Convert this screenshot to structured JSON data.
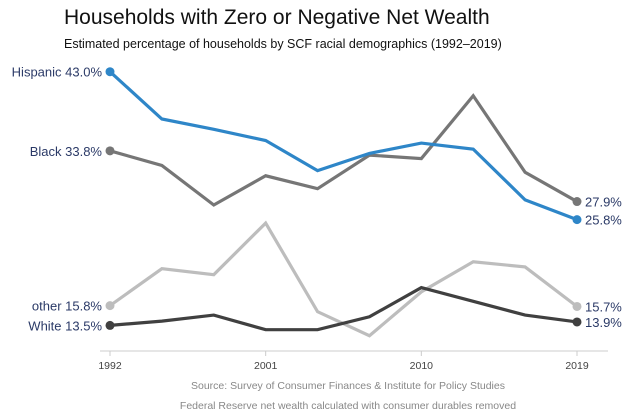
{
  "chart_data": {
    "type": "line",
    "title": "Households with Zero or Negative Net Wealth",
    "subtitle": "Estimated percentage of households by SCF racial demographics (1992–2019)",
    "x": [
      1992,
      1995,
      1998,
      2001,
      2004,
      2007,
      2010,
      2013,
      2016,
      2019
    ],
    "xticks": [
      "1992",
      "2001",
      "2010",
      "2019"
    ],
    "grid": false,
    "series": [
      {
        "name": "Hispanic",
        "color": "#2e86c8",
        "start_label": "Hispanic 43.0%",
        "end_label": "25.8%",
        "values": [
          43.0,
          37.5,
          36.3,
          35.0,
          31.5,
          33.5,
          34.7,
          34.0,
          28.1,
          25.8
        ]
      },
      {
        "name": "Black",
        "color": "#767676",
        "start_label": "Black 33.8%",
        "end_label": "27.9%",
        "values": [
          33.8,
          32.1,
          27.5,
          30.9,
          29.4,
          33.3,
          32.9,
          40.2,
          31.3,
          27.9
        ]
      },
      {
        "name": "other",
        "color": "#bdbdbd",
        "start_label": "other 15.8%",
        "end_label": "15.7%",
        "values": [
          15.8,
          20.1,
          19.4,
          25.4,
          15.1,
          12.3,
          17.4,
          20.9,
          20.3,
          15.7
        ]
      },
      {
        "name": "White",
        "color": "#404040",
        "start_label": "White 13.5%",
        "end_label": "13.9%",
        "values": [
          13.5,
          14.0,
          14.7,
          13.0,
          13.0,
          14.5,
          17.9,
          16.3,
          14.7,
          13.9
        ]
      }
    ],
    "label_color": "#2b3a67",
    "source": "Source: Survey of Consumer Finances & Institute for Policy Studies",
    "note": "Federal Reserve net wealth calculated with consumer durables removed"
  }
}
